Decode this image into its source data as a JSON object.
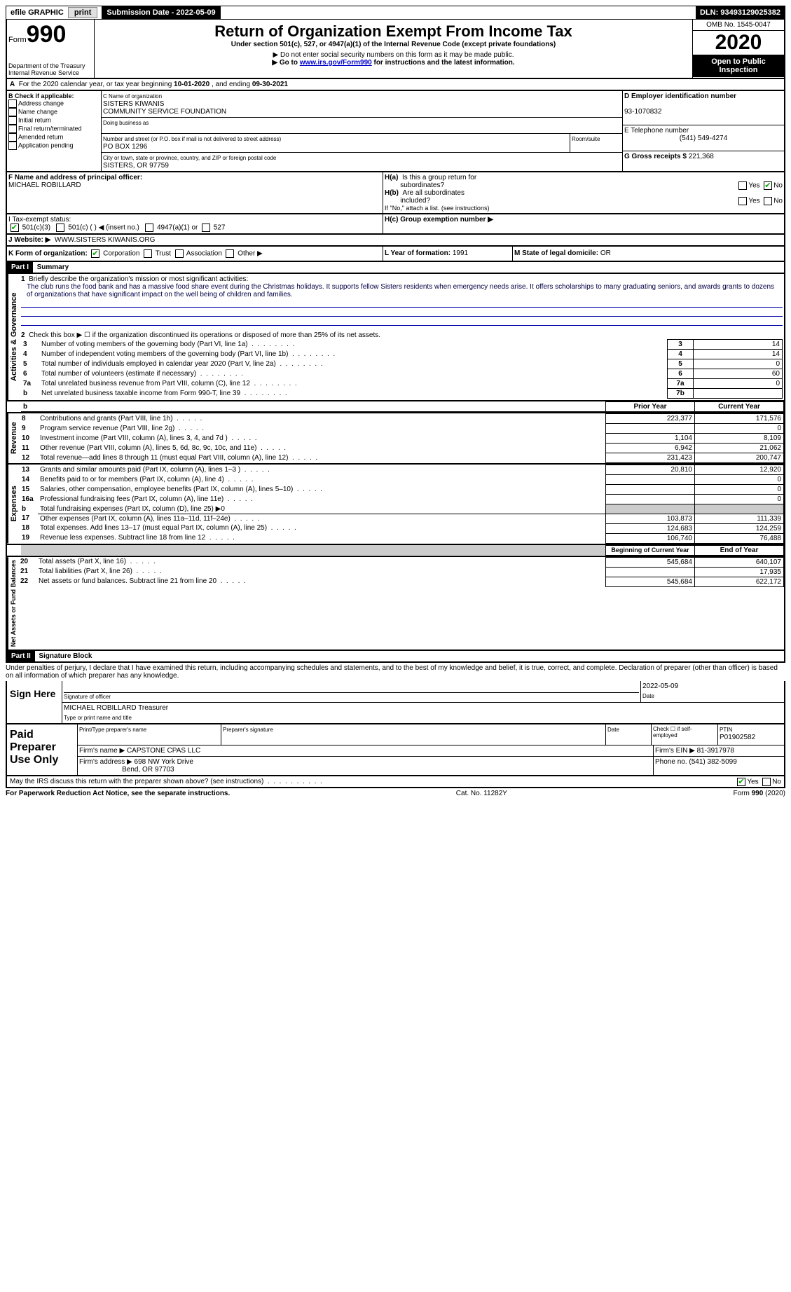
{
  "topbar": {
    "efile_label": "efile GRAPHIC",
    "print_btn": "print",
    "submission_label": "Submission Date - 2022-05-09",
    "dln_label": "DLN: 93493129025382"
  },
  "header": {
    "form_label": "Form",
    "form_num": "990",
    "dept": "Department of the Treasury\nInternal Revenue Service",
    "title": "Return of Organization Exempt From Income Tax",
    "subtitle": "Under section 501(c), 527, or 4947(a)(1) of the Internal Revenue Code (except private foundations)",
    "warn1": "▶ Do not enter social security numbers on this form as it may be made public.",
    "warn2_prefix": "▶ Go to ",
    "warn2_link": "www.irs.gov/Form990",
    "warn2_suffix": " for instructions and the latest information.",
    "omb": "OMB No. 1545-0047",
    "year": "2020",
    "open_public": "Open to Public Inspection"
  },
  "period": {
    "text_prefix": "For the 2020 calendar year, or tax year beginning ",
    "begin": "10-01-2020",
    "mid": " , and ending ",
    "end": "09-30-2021"
  },
  "boxB": {
    "label": "B Check if applicable:",
    "addr_change": "Address change",
    "name_change": "Name change",
    "initial": "Initial return",
    "final": "Final return/terminated",
    "amended": "Amended return",
    "app_pending": "Application pending"
  },
  "boxC": {
    "name_label": "C Name of organization",
    "name1": "SISTERS KIWANIS",
    "name2": "COMMUNITY SERVICE FOUNDATION",
    "dba_label": "Doing business as",
    "street_label": "Number and street (or P.O. box if mail is not delivered to street address)",
    "street": "PO BOX 1296",
    "room_label": "Room/suite",
    "city_label": "City or town, state or province, country, and ZIP or foreign postal code",
    "city": "SISTERS, OR  97759"
  },
  "boxD": {
    "label": "D Employer identification number",
    "ein": "93-1070832"
  },
  "boxE": {
    "label": "E Telephone number",
    "phone": "(541) 549-4274"
  },
  "boxG": {
    "label": "G Gross receipts $",
    "amount": "221,368"
  },
  "boxF": {
    "label": "F  Name and address of principal officer:",
    "name": "MICHAEL ROBILLARD"
  },
  "boxH": {
    "ha_label": "H(a)  Is this a group return for subordinates?",
    "hb_label": "H(b)  Are all subordinates included?",
    "hb_note": "If \"No,\" attach a list. (see instructions)",
    "hc_label": "H(c)  Group exemption number ▶",
    "yes": "Yes",
    "no": "No"
  },
  "rowI": {
    "label": "I    Tax-exempt status:",
    "opt1": "501(c)(3)",
    "opt2": "501(c) (  )    ◀ (insert no.)",
    "opt3": "4947(a)(1) or",
    "opt4": "527"
  },
  "rowJ": {
    "label": "J    Website: ▶",
    "value": "WWW.SISTERS KIWANIS.ORG"
  },
  "rowK": {
    "label": "K Form of organization:",
    "corp": "Corporation",
    "trust": "Trust",
    "assoc": "Association",
    "other": "Other ▶"
  },
  "rowL": {
    "label": "L Year of formation:",
    "value": "1991"
  },
  "rowM": {
    "label": "M State of legal domicile:",
    "value": "OR"
  },
  "part1": {
    "header": "Part I",
    "title": "Summary",
    "activities_label": "Activities & Governance",
    "revenue_label": "Revenue",
    "expenses_label": "Expenses",
    "netassets_label": "Net Assets or Fund Balances",
    "line1_label": "Briefly describe the organization's mission or most significant activities:",
    "mission": "The club runs the food bank and has a massive food share event during the Christmas holidays. It supports fellow Sisters residents when emergency needs arise. It offers scholarships to many graduating seniors, and awards grants to dozens of organizations that have significant impact on the well being of children and families.",
    "line2": "Check this box ▶ ☐  if the organization discontinued its operations or disposed of more than 25% of its net assets.",
    "lines_gov": [
      {
        "n": "3",
        "label": "Number of voting members of the governing body (Part VI, line 1a)",
        "box": "3",
        "val": "14"
      },
      {
        "n": "4",
        "label": "Number of independent voting members of the governing body (Part VI, line 1b)",
        "box": "4",
        "val": "14"
      },
      {
        "n": "5",
        "label": "Total number of individuals employed in calendar year 2020 (Part V, line 2a)",
        "box": "5",
        "val": "0"
      },
      {
        "n": "6",
        "label": "Total number of volunteers (estimate if necessary)",
        "box": "6",
        "val": "60"
      },
      {
        "n": "7a",
        "label": "Total unrelated business revenue from Part VIII, column (C), line 12",
        "box": "7a",
        "val": "0"
      },
      {
        "n": "b",
        "label": "Net unrelated business taxable income from Form 990-T, line 39",
        "box": "7b",
        "val": ""
      }
    ],
    "col_headers": {
      "prior": "Prior Year",
      "curr": "Current Year"
    },
    "lines_rev": [
      {
        "n": "8",
        "label": "Contributions and grants (Part VIII, line 1h)",
        "prior": "223,377",
        "curr": "171,576"
      },
      {
        "n": "9",
        "label": "Program service revenue (Part VIII, line 2g)",
        "prior": "",
        "curr": "0"
      },
      {
        "n": "10",
        "label": "Investment income (Part VIII, column (A), lines 3, 4, and 7d )",
        "prior": "1,104",
        "curr": "8,109"
      },
      {
        "n": "11",
        "label": "Other revenue (Part VIII, column (A), lines 5, 6d, 8c, 9c, 10c, and 11e)",
        "prior": "6,942",
        "curr": "21,062"
      },
      {
        "n": "12",
        "label": "Total revenue—add lines 8 through 11 (must equal Part VIII, column (A), line 12)",
        "prior": "231,423",
        "curr": "200,747"
      }
    ],
    "lines_exp": [
      {
        "n": "13",
        "label": "Grants and similar amounts paid (Part IX, column (A), lines 1–3 )",
        "prior": "20,810",
        "curr": "12,920"
      },
      {
        "n": "14",
        "label": "Benefits paid to or for members (Part IX, column (A), line 4)",
        "prior": "",
        "curr": "0"
      },
      {
        "n": "15",
        "label": "Salaries, other compensation, employee benefits (Part IX, column (A), lines 5–10)",
        "prior": "",
        "curr": "0"
      },
      {
        "n": "16a",
        "label": "Professional fundraising fees (Part IX, column (A), line 11e)",
        "prior": "",
        "curr": "0"
      },
      {
        "n": "b",
        "label": "Total fundraising expenses (Part IX, column (D), line 25) ▶0",
        "prior": null,
        "curr": null
      },
      {
        "n": "17",
        "label": "Other expenses (Part IX, column (A), lines 11a–11d, 11f–24e)",
        "prior": "103,873",
        "curr": "111,339"
      },
      {
        "n": "18",
        "label": "Total expenses. Add lines 13–17 (must equal Part IX, column (A), line 25)",
        "prior": "124,683",
        "curr": "124,259"
      },
      {
        "n": "19",
        "label": "Revenue less expenses. Subtract line 18 from line 12",
        "prior": "106,740",
        "curr": "76,488"
      }
    ],
    "col_headers2": {
      "boy": "Beginning of Current Year",
      "eoy": "End of Year"
    },
    "lines_net": [
      {
        "n": "20",
        "label": "Total assets (Part X, line 16)",
        "prior": "545,684",
        "curr": "640,107"
      },
      {
        "n": "21",
        "label": "Total liabilities (Part X, line 26)",
        "prior": "",
        "curr": "17,935"
      },
      {
        "n": "22",
        "label": "Net assets or fund balances. Subtract line 21 from line 20",
        "prior": "545,684",
        "curr": "622,172"
      }
    ]
  },
  "part2": {
    "header": "Part II",
    "title": "Signature Block",
    "penalty": "Under penalties of perjury, I declare that I have examined this return, including accompanying schedules and statements, and to the best of my knowledge and belief, it is true, correct, and complete. Declaration of preparer (other than officer) is based on all information of which preparer has any knowledge.",
    "sign_here": "Sign Here",
    "sig_officer": "Signature of officer",
    "sig_date": "2022-05-09",
    "date_label": "Date",
    "officer_name": "MICHAEL ROBILLARD Treasurer",
    "type_name": "Type or print name and title",
    "paid_prep": "Paid Preparer Use Only",
    "pt_name_label": "Print/Type preparer's name",
    "pt_sig_label": "Preparer's signature",
    "pt_date_label": "Date",
    "pt_check": "Check ☐ if self-employed",
    "ptin_label": "PTIN",
    "ptin": "P01902582",
    "firm_name_label": "Firm's name    ▶",
    "firm_name": "CAPSTONE CPAS LLC",
    "firm_ein_label": "Firm's EIN ▶",
    "firm_ein": "81-3917978",
    "firm_addr_label": "Firm's address ▶",
    "firm_addr1": "698 NW York Drive",
    "firm_addr2": "Bend, OR  97703",
    "phone_label": "Phone no.",
    "phone": "(541) 382-5099",
    "discuss": "May the IRS discuss this return with the preparer shown above? (see instructions)",
    "yes": "Yes",
    "no": "No"
  },
  "footer": {
    "paperwork": "For Paperwork Reduction Act Notice, see the separate instructions.",
    "cat": "Cat. No. 11282Y",
    "form": "Form 990 (2020)"
  }
}
